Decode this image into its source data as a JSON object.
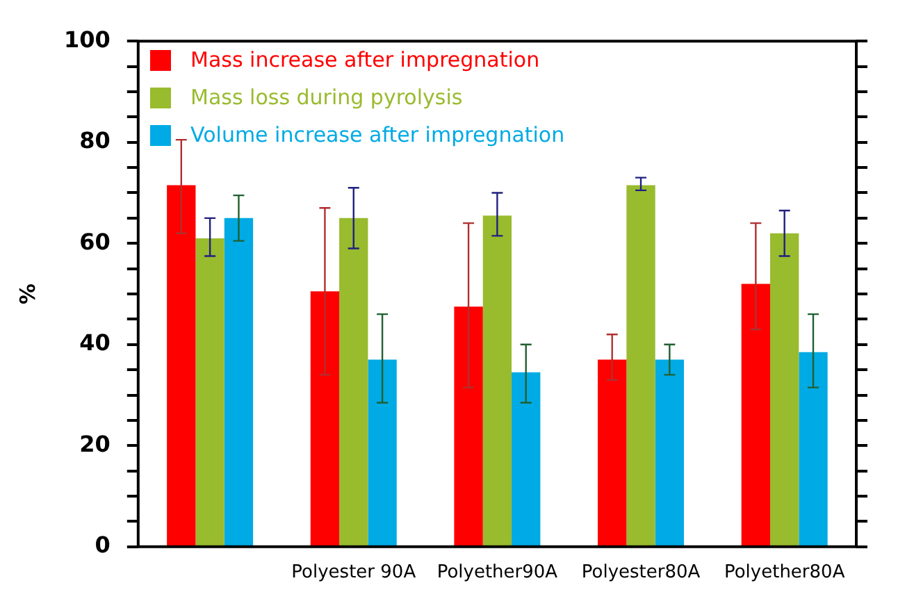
{
  "chart_data": {
    "type": "bar",
    "ylabel": "%",
    "categories": [
      null,
      "Polyester 90A",
      "Polyether90A",
      "Polyester80A",
      "Polyether80A"
    ],
    "series": [
      {
        "name": "Mass increase after impregnation",
        "color": "#ff0000",
        "values": [
          71.5,
          50.5,
          47.5,
          37,
          52
        ],
        "errors": [
          [
            62,
            80.5
          ],
          [
            34,
            67
          ],
          [
            31.5,
            64
          ],
          [
            33,
            42
          ],
          [
            43,
            64
          ]
        ]
      },
      {
        "name": "Mass loss during pyrolysis",
        "color": "#99bb2e",
        "values": [
          61,
          65,
          65.5,
          71.5,
          62
        ],
        "errors": [
          [
            57.5,
            65
          ],
          [
            59,
            71
          ],
          [
            61.5,
            70
          ],
          [
            70.5,
            73
          ],
          [
            57.5,
            66.5
          ]
        ]
      },
      {
        "name": "Volume increase after impregnation",
        "color": "#00aae4",
        "values": [
          65,
          37,
          34.5,
          37,
          38.5
        ],
        "errors": [
          [
            60.5,
            69.5
          ],
          [
            28.5,
            46
          ],
          [
            28.5,
            40
          ],
          [
            34,
            40
          ],
          [
            31.5,
            46
          ]
        ]
      }
    ],
    "ylim": [
      0,
      100
    ],
    "yticks": [
      0,
      {
        "value": 5,
        "label": null
      },
      {
        "value": 10,
        "label": null
      },
      {
        "value": 15,
        "label": null
      },
      20,
      {
        "value": 25,
        "label": null
      },
      {
        "value": 30,
        "label": null
      },
      {
        "value": 35,
        "label": null
      },
      40,
      {
        "value": 45,
        "label": null
      },
      {
        "value": 50,
        "label": null
      },
      {
        "value": 55,
        "label": null
      },
      60,
      {
        "value": 65,
        "label": null
      },
      {
        "value": 70,
        "label": null
      },
      {
        "value": 75,
        "label": null
      },
      80,
      {
        "value": 85,
        "label": null
      },
      {
        "value": 90,
        "label": null
      },
      {
        "value": 95,
        "label": null
      },
      100
    ],
    "grid": false,
    "legend": "top left"
  }
}
